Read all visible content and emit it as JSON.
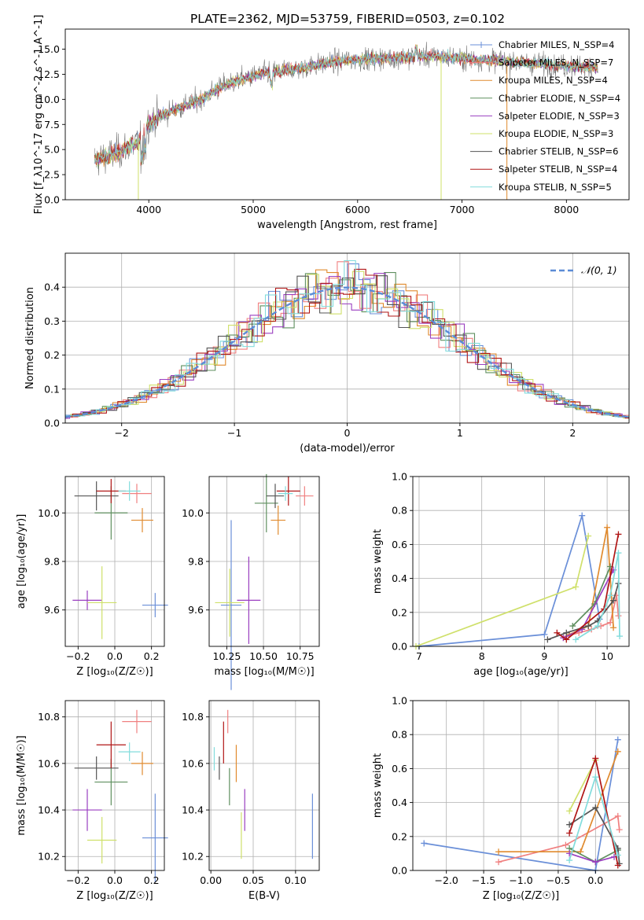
{
  "figure_title": "PLATE=2362, MJD=53759, FIBERID=0503, z=0.102",
  "colors": {
    "chabrier_miles": "#6a8fd8",
    "salpeter_miles": "#f08080",
    "kroupa_miles": "#e08a2e",
    "chabrier_elodie": "#5f8f5f",
    "salpeter_elodie": "#9a3fc0",
    "kroupa_elodie": "#cfe06a",
    "chabrier_stelib": "#555555",
    "salpeter_stelib": "#b01515",
    "kroupa_stelib": "#82dcdc",
    "normal_curve": "#5b8bd6"
  },
  "chart_data": [
    {
      "id": "spectrum",
      "type": "line",
      "title": "PLATE=2362, MJD=53759, FIBERID=0503, z=0.102",
      "xlabel": "wavelength [Angstrom, rest frame]",
      "ylabel": "Flux [f_λ10^-17 erg cm^-2 s^-1 A^-1]",
      "xlim": [
        3200,
        8600
      ],
      "ylim": [
        0,
        17
      ],
      "xticks": [
        "4000",
        "5000",
        "6000",
        "7000",
        "8000"
      ],
      "xtick_values": [
        4000,
        5000,
        6000,
        7000,
        8000
      ],
      "yticks": [
        "0.0",
        "2.5",
        "5.0",
        "7.5",
        "10.0",
        "12.5",
        "15.0"
      ],
      "ytick_values": [
        0,
        2.5,
        5,
        7.5,
        10,
        12.5,
        15
      ],
      "grid": false,
      "legend_position": "right",
      "continuum": {
        "x": [
          3500,
          3700,
          3900,
          4000,
          4100,
          4300,
          4500,
          4700,
          4900,
          5100,
          5300,
          5500,
          5700,
          5900,
          6100,
          6300,
          6500,
          6700,
          6900,
          7100,
          7300,
          7500,
          7700,
          7900,
          8100,
          8300
        ],
        "y": [
          4.0,
          4.7,
          5.8,
          7.6,
          8.3,
          9.2,
          10.0,
          11.3,
          12.0,
          12.6,
          12.9,
          13.2,
          13.6,
          13.9,
          14.0,
          14.1,
          14.2,
          14.3,
          14.2,
          14.0,
          13.9,
          13.7,
          13.6,
          13.4,
          13.3,
          13.2
        ]
      },
      "series": [
        {
          "name": "Chabrier MILES, N_SSP=4",
          "color_key": "chabrier_miles",
          "marker": "+"
        },
        {
          "name": "Salpeter MILES, N_SSP=7",
          "color_key": "salpeter_miles",
          "marker": "-"
        },
        {
          "name": "Kroupa MILES, N_SSP=4",
          "color_key": "kroupa_miles",
          "marker": "-"
        },
        {
          "name": "Chabrier ELODIE, N_SSP=4",
          "color_key": "chabrier_elodie",
          "marker": "-"
        },
        {
          "name": "Salpeter ELODIE, N_SSP=3",
          "color_key": "salpeter_elodie",
          "marker": "-"
        },
        {
          "name": "Kroupa ELODIE, N_SSP=3",
          "color_key": "kroupa_elodie",
          "marker": "-"
        },
        {
          "name": "Chabrier STELIB, N_SSP=6",
          "color_key": "chabrier_stelib",
          "marker": "-"
        },
        {
          "name": "Salpeter STELIB, N_SSP=4",
          "color_key": "salpeter_stelib",
          "marker": "-"
        },
        {
          "name": "Kroupa STELIB, N_SSP=5",
          "color_key": "kroupa_stelib",
          "marker": "-"
        }
      ],
      "vertical_drops": [
        {
          "x": 3900,
          "color_key": "kroupa_elodie"
        },
        {
          "x": 6800,
          "color_key": "kroupa_elodie"
        },
        {
          "x": 7430,
          "color_key": "kroupa_miles"
        }
      ]
    },
    {
      "id": "residuals",
      "type": "line",
      "xlabel": "(data-model)/error",
      "ylabel": "Normed distribution",
      "xlim": [
        -2.5,
        2.5
      ],
      "ylim": [
        0,
        0.5
      ],
      "xticks": [
        "−2",
        "−1",
        "0",
        "1",
        "2"
      ],
      "xtick_values": [
        -2,
        -1,
        0,
        1,
        2
      ],
      "yticks": [
        "0.0",
        "0.1",
        "0.2",
        "0.3",
        "0.4"
      ],
      "ytick_values": [
        0,
        0.1,
        0.2,
        0.3,
        0.4
      ],
      "grid": true,
      "legend": [
        {
          "name": "𝒩(0, 1)",
          "style": "dashed",
          "color_key": "normal_curve"
        }
      ],
      "legend_position": "top-right",
      "bin_width": 0.1,
      "histograms": [
        {
          "color_key": "chabrier_miles",
          "offset": 0.3
        },
        {
          "color_key": "salpeter_miles",
          "offset": 1.1
        },
        {
          "color_key": "kroupa_miles",
          "offset": 1.9
        },
        {
          "color_key": "chabrier_elodie",
          "offset": 2.7
        },
        {
          "color_key": "salpeter_elodie",
          "offset": 3.5
        },
        {
          "color_key": "kroupa_elodie",
          "offset": 4.3
        },
        {
          "color_key": "chabrier_stelib",
          "offset": 5.1
        },
        {
          "color_key": "salpeter_stelib",
          "offset": 5.9
        },
        {
          "color_key": "kroupa_stelib",
          "offset": 6.7
        }
      ]
    },
    {
      "id": "age_vs_Z",
      "type": "scatter",
      "xlabel": "Z [log₁₀(Z/Z☉)]",
      "ylabel": "age  [log₁₀(age/yr)]",
      "xlim": [
        -0.27,
        0.27
      ],
      "ylim": [
        9.45,
        10.15
      ],
      "xticks": [
        "−0.2",
        "0.0",
        "0.2"
      ],
      "xtick_values": [
        -0.2,
        0,
        0.2
      ],
      "yticks": [
        "9.6",
        "9.8",
        "10.0"
      ],
      "ytick_values": [
        9.6,
        9.8,
        10.0
      ],
      "grid": true,
      "points": [
        {
          "color_key": "chabrier_miles",
          "x": 0.22,
          "y": 9.62,
          "xerr": 0.07,
          "yerr": 0.05
        },
        {
          "color_key": "salpeter_miles",
          "x": 0.12,
          "y": 10.08,
          "xerr": 0.08,
          "yerr": 0.04
        },
        {
          "color_key": "kroupa_miles",
          "x": 0.15,
          "y": 9.97,
          "xerr": 0.06,
          "yerr": 0.05
        },
        {
          "color_key": "chabrier_elodie",
          "x": -0.02,
          "y": 10.0,
          "xerr": 0.09,
          "yerr": 0.11
        },
        {
          "color_key": "salpeter_elodie",
          "x": -0.15,
          "y": 9.64,
          "xerr": 0.08,
          "yerr": 0.04
        },
        {
          "color_key": "kroupa_elodie",
          "x": -0.07,
          "y": 9.63,
          "xerr": 0.08,
          "yerr": 0.15
        },
        {
          "color_key": "chabrier_stelib",
          "x": -0.1,
          "y": 10.07,
          "xerr": 0.12,
          "yerr": 0.06
        },
        {
          "color_key": "salpeter_stelib",
          "x": -0.02,
          "y": 10.09,
          "xerr": 0.08,
          "yerr": 0.05
        },
        {
          "color_key": "kroupa_stelib",
          "x": 0.08,
          "y": 10.09,
          "xerr": 0.06,
          "yerr": 0.04
        }
      ]
    },
    {
      "id": "age_vs_mass",
      "type": "scatter",
      "xlabel": "mass [log₁₀(M/M☉)]",
      "ylabel": "",
      "xlim": [
        10.13,
        10.88
      ],
      "ylim": [
        9.45,
        10.15
      ],
      "xticks": [
        "10.25",
        "10.50",
        "10.75"
      ],
      "xtick_values": [
        10.25,
        10.5,
        10.75
      ],
      "yticks": [
        "9.6",
        "9.8",
        "10.0"
      ],
      "ytick_values": [
        9.6,
        9.8,
        10.0
      ],
      "grid": true,
      "points": [
        {
          "color_key": "chabrier_miles",
          "x": 10.28,
          "y": 9.62,
          "xerr": 0.07,
          "yerr": 0.35
        },
        {
          "color_key": "salpeter_miles",
          "x": 10.78,
          "y": 10.07,
          "xerr": 0.06,
          "yerr": 0.04
        },
        {
          "color_key": "kroupa_miles",
          "x": 10.6,
          "y": 9.97,
          "xerr": 0.05,
          "yerr": 0.06
        },
        {
          "color_key": "chabrier_elodie",
          "x": 10.52,
          "y": 10.04,
          "xerr": 0.08,
          "yerr": 0.12
        },
        {
          "color_key": "salpeter_elodie",
          "x": 10.4,
          "y": 9.64,
          "xerr": 0.08,
          "yerr": 0.18
        },
        {
          "color_key": "kroupa_elodie",
          "x": 10.27,
          "y": 9.63,
          "xerr": 0.1,
          "yerr": 0.14
        },
        {
          "color_key": "chabrier_stelib",
          "x": 10.58,
          "y": 10.07,
          "xerr": 0.06,
          "yerr": 0.05
        },
        {
          "color_key": "salpeter_stelib",
          "x": 10.67,
          "y": 10.09,
          "xerr": 0.08,
          "yerr": 0.06
        },
        {
          "color_key": "kroupa_stelib",
          "x": 10.65,
          "y": 10.08,
          "xerr": 0.05,
          "yerr": 0.03
        }
      ]
    },
    {
      "id": "weight_vs_age",
      "type": "line",
      "xlabel": "age  [log₁₀(age/yr)]",
      "ylabel": "mass weight",
      "xlim": [
        6.9,
        10.35
      ],
      "ylim": [
        0,
        1
      ],
      "xticks": [
        "7",
        "8",
        "9",
        "10"
      ],
      "xtick_values": [
        7,
        8,
        9,
        10
      ],
      "yticks": [
        "0.0",
        "0.2",
        "0.4",
        "0.6",
        "0.8",
        "1.0"
      ],
      "ytick_values": [
        0,
        0.2,
        0.4,
        0.6,
        0.8,
        1.0
      ],
      "grid": true,
      "series": [
        {
          "color_key": "chabrier_miles",
          "x": [
            7.0,
            9.0,
            9.6,
            9.88
          ],
          "y": [
            0.0,
            0.07,
            0.77,
            0.16
          ]
        },
        {
          "color_key": "salpeter_miles",
          "x": [
            9.35,
            9.55,
            9.75,
            9.9,
            10.05,
            10.15,
            10.18
          ],
          "y": [
            0.06,
            0.08,
            0.1,
            0.12,
            0.14,
            0.3,
            0.18
          ]
        },
        {
          "color_key": "kroupa_miles",
          "x": [
            9.4,
            9.7,
            10.0,
            10.1
          ],
          "y": [
            0.07,
            0.12,
            0.7,
            0.11
          ]
        },
        {
          "color_key": "chabrier_elodie",
          "x": [
            9.45,
            9.8,
            10.05
          ],
          "y": [
            0.12,
            0.25,
            0.47
          ]
        },
        {
          "color_key": "salpeter_elodie",
          "x": [
            9.3,
            9.6,
            10.1
          ],
          "y": [
            0.05,
            0.1,
            0.45
          ]
        },
        {
          "color_key": "kroupa_elodie",
          "x": [
            6.95,
            9.5,
            9.7
          ],
          "y": [
            0.0,
            0.35,
            0.65
          ]
        },
        {
          "color_key": "chabrier_stelib",
          "x": [
            9.05,
            9.35,
            9.7,
            9.85,
            10.1,
            10.18
          ],
          "y": [
            0.04,
            0.08,
            0.12,
            0.15,
            0.27,
            0.37
          ]
        },
        {
          "color_key": "salpeter_stelib",
          "x": [
            9.2,
            9.35,
            9.95,
            10.18
          ],
          "y": [
            0.08,
            0.04,
            0.22,
            0.66
          ]
        },
        {
          "color_key": "kroupa_stelib",
          "x": [
            9.5,
            9.85,
            10.05,
            10.18,
            10.2
          ],
          "y": [
            0.04,
            0.12,
            0.3,
            0.55,
            0.06
          ]
        }
      ]
    },
    {
      "id": "mass_vs_Z",
      "type": "scatter",
      "xlabel": "Z [log₁₀(Z/Z☉)]",
      "ylabel": "mass [log₁₀(M/M☉)]",
      "xlim": [
        -0.27,
        0.27
      ],
      "ylim": [
        10.14,
        10.87
      ],
      "xticks": [
        "−0.2",
        "0.0",
        "0.2"
      ],
      "xtick_values": [
        -0.2,
        0,
        0.2
      ],
      "yticks": [
        "10.2",
        "10.4",
        "10.6",
        "10.8"
      ],
      "ytick_values": [
        10.2,
        10.4,
        10.6,
        10.8
      ],
      "grid": true,
      "points": [
        {
          "color_key": "chabrier_miles",
          "x": 0.22,
          "y": 10.28,
          "xerr": 0.07,
          "yerr": 0.19
        },
        {
          "color_key": "salpeter_miles",
          "x": 0.12,
          "y": 10.78,
          "xerr": 0.08,
          "yerr": 0.05
        },
        {
          "color_key": "kroupa_miles",
          "x": 0.15,
          "y": 10.6,
          "xerr": 0.06,
          "yerr": 0.05
        },
        {
          "color_key": "chabrier_elodie",
          "x": -0.02,
          "y": 10.52,
          "xerr": 0.09,
          "yerr": 0.1
        },
        {
          "color_key": "salpeter_elodie",
          "x": -0.15,
          "y": 10.4,
          "xerr": 0.08,
          "yerr": 0.09
        },
        {
          "color_key": "kroupa_elodie",
          "x": -0.07,
          "y": 10.27,
          "xerr": 0.08,
          "yerr": 0.1
        },
        {
          "color_key": "chabrier_stelib",
          "x": -0.1,
          "y": 10.58,
          "xerr": 0.12,
          "yerr": 0.05
        },
        {
          "color_key": "salpeter_stelib",
          "x": -0.02,
          "y": 10.68,
          "xerr": 0.08,
          "yerr": 0.1
        },
        {
          "color_key": "kroupa_stelib",
          "x": 0.08,
          "y": 10.65,
          "xerr": 0.06,
          "yerr": 0.04
        }
      ]
    },
    {
      "id": "mass_vs_ebv",
      "type": "scatter",
      "xlabel": "E(B-V)",
      "ylabel": "",
      "xlim": [
        -0.002,
        0.128
      ],
      "ylim": [
        10.14,
        10.87
      ],
      "xticks": [
        "0.00",
        "0.05",
        "0.10"
      ],
      "xtick_values": [
        0,
        0.05,
        0.1
      ],
      "yticks": [
        "10.2",
        "10.4",
        "10.6",
        "10.8"
      ],
      "ytick_values": [
        10.2,
        10.4,
        10.6,
        10.8
      ],
      "grid": true,
      "points": [
        {
          "color_key": "chabrier_miles",
          "x": 0.12,
          "y": 10.33,
          "xerr": 0,
          "yerr": 0.14
        },
        {
          "color_key": "salpeter_miles",
          "x": 0.02,
          "y": 10.78,
          "xerr": 0,
          "yerr": 0.05
        },
        {
          "color_key": "kroupa_miles",
          "x": 0.03,
          "y": 10.6,
          "xerr": 0,
          "yerr": 0.08
        },
        {
          "color_key": "chabrier_elodie",
          "x": 0.022,
          "y": 10.5,
          "xerr": 0,
          "yerr": 0.08
        },
        {
          "color_key": "salpeter_elodie",
          "x": 0.04,
          "y": 10.4,
          "xerr": 0,
          "yerr": 0.09
        },
        {
          "color_key": "kroupa_elodie",
          "x": 0.036,
          "y": 10.29,
          "xerr": 0,
          "yerr": 0.1
        },
        {
          "color_key": "chabrier_stelib",
          "x": 0.01,
          "y": 10.58,
          "xerr": 0,
          "yerr": 0.05
        },
        {
          "color_key": "salpeter_stelib",
          "x": 0.015,
          "y": 10.69,
          "xerr": 0,
          "yerr": 0.09
        },
        {
          "color_key": "kroupa_stelib",
          "x": 0.004,
          "y": 10.62,
          "xerr": 0,
          "yerr": 0.05
        }
      ]
    },
    {
      "id": "weight_vs_Z",
      "type": "line",
      "xlabel": "Z [log₁₀(Z/Z☉)]",
      "ylabel": "mass weight",
      "xlim": [
        -2.45,
        0.45
      ],
      "ylim": [
        0,
        1
      ],
      "xticks": [
        "−2.0",
        "−1.5",
        "−1.0",
        "−0.5",
        "0.0"
      ],
      "xtick_values": [
        -2,
        -1.5,
        -1,
        -0.5,
        0
      ],
      "yticks": [
        "0.0",
        "0.2",
        "0.4",
        "0.6",
        "0.8",
        "1.0"
      ],
      "ytick_values": [
        0,
        0.2,
        0.4,
        0.6,
        0.8,
        1.0
      ],
      "grid": true,
      "series": [
        {
          "color_key": "chabrier_miles",
          "x": [
            -2.3,
            0.0,
            0.3
          ],
          "y": [
            0.16,
            0.0,
            0.77
          ]
        },
        {
          "color_key": "salpeter_miles",
          "x": [
            -1.3,
            -0.4,
            0.3,
            0.32
          ],
          "y": [
            0.05,
            0.15,
            0.32,
            0.24
          ]
        },
        {
          "color_key": "kroupa_miles",
          "x": [
            -1.3,
            -0.2,
            0.3
          ],
          "y": [
            0.11,
            0.11,
            0.7
          ]
        },
        {
          "color_key": "chabrier_elodie",
          "x": [
            -0.35,
            0.0,
            0.3
          ],
          "y": [
            0.13,
            0.05,
            0.12
          ]
        },
        {
          "color_key": "salpeter_elodie",
          "x": [
            -0.35,
            0.0,
            0.25
          ],
          "y": [
            0.1,
            0.05,
            0.08
          ]
        },
        {
          "color_key": "kroupa_elodie",
          "x": [
            -0.35,
            0.0
          ],
          "y": [
            0.35,
            0.65
          ]
        },
        {
          "color_key": "chabrier_stelib",
          "x": [
            -0.35,
            0.0,
            0.3,
            0.32
          ],
          "y": [
            0.27,
            0.37,
            0.13,
            0.04
          ]
        },
        {
          "color_key": "salpeter_stelib",
          "x": [
            -0.35,
            0.0,
            0.3
          ],
          "y": [
            0.22,
            0.66,
            0.03
          ]
        },
        {
          "color_key": "kroupa_stelib",
          "x": [
            -0.35,
            0.0,
            0.3
          ],
          "y": [
            0.06,
            0.55,
            0.09
          ]
        }
      ]
    }
  ]
}
